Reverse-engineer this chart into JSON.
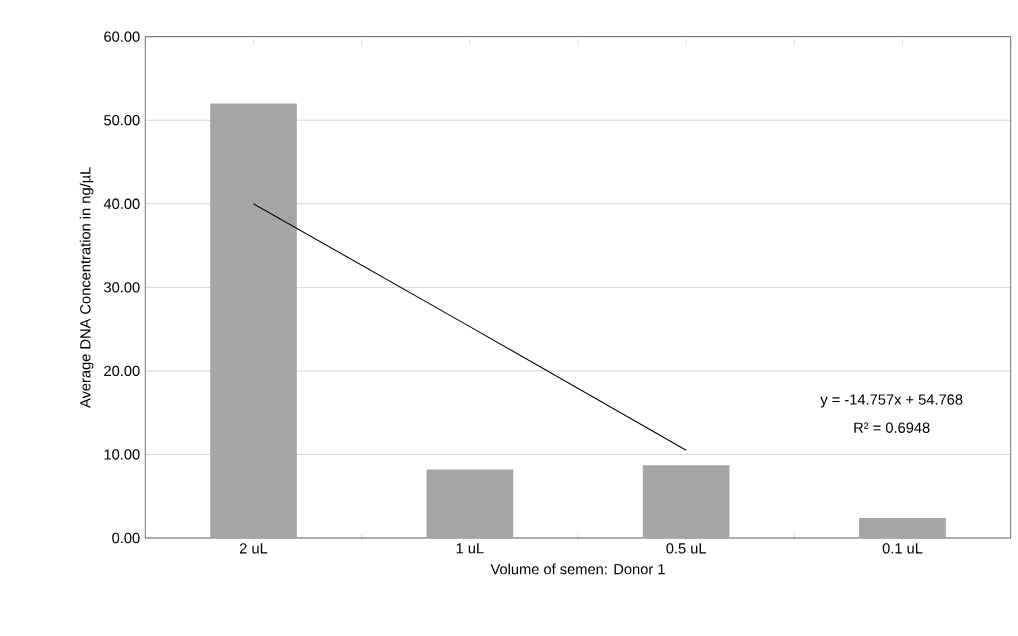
{
  "chart_data": {
    "type": "bar",
    "xlabel": "Volume of semen: Donor 1",
    "ylabel": "Average DNA Concentration in ng/µL",
    "categories": [
      "2 uL",
      "1 uL",
      "0.5 uL",
      "0.1 uL"
    ],
    "series": [
      {
        "color": "#a5a5a5",
        "values": [
          52.0,
          8.2,
          8.7,
          2.4
        ]
      },
      {
        "type": "line",
        "color": "#000000",
        "values": [
          40.0,
          25.3,
          10.5,
          null
        ]
      }
    ],
    "ylim": [
      0,
      60
    ],
    "yticks": [
      {
        "value": 0,
        "label": "0.00"
      },
      {
        "value": 10,
        "label": "10.00"
      },
      {
        "value": 20,
        "label": "20.00"
      },
      {
        "value": 30,
        "label": "30.00"
      },
      {
        "value": 40,
        "label": "40.00"
      },
      {
        "value": 50,
        "label": "50.00"
      },
      {
        "value": 60,
        "label": "60.00"
      }
    ],
    "grid": "y",
    "annotations": [
      "y = -14.757x + 54.768",
      "R² = 0.6948"
    ]
  }
}
